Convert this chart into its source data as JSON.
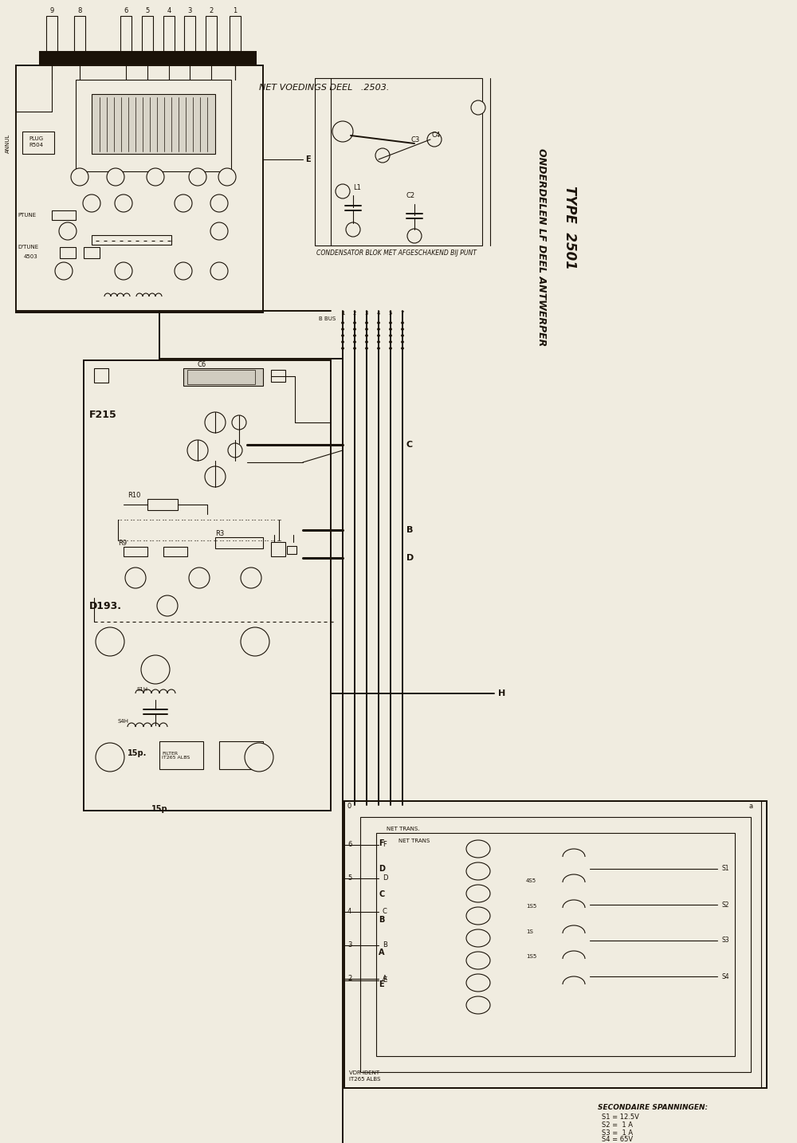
{
  "bg_color": "#f0ece0",
  "line_color": "#1a1208",
  "fig_width": 10.0,
  "fig_height": 14.34,
  "dpi": 100,
  "title_main": "ONDERDELEN LF DEEL ANTWERPER",
  "title_type": "TYPE  2501",
  "net_voedings_text": "NET VOEDINGS DEEL   .2503.",
  "condensator_text": "CONDENSATOR BLOK MET AFGESCHAKEND BIJ PUNT",
  "f215_text": "F215",
  "d193_text": "D193.",
  "c6_text": "C6",
  "r10_text": "R10",
  "r9_text": "R9",
  "r3_text": "R3",
  "15p_text": "15p.",
  "h_label": "H",
  "b_label": "B",
  "c_label": "C",
  "d_label": "D",
  "secondaire_text": "SECONDAIRE SPANNINGEN:",
  "s1_text": "S1 = 12.5V",
  "s2_text": "S2 =  1 A",
  "s3_text": "S3 =  1 A",
  "s4_text": "S4 = 65V",
  "bus_label": "B BUS",
  "pin_labels": [
    "1",
    "2",
    "3",
    "4",
    "5",
    "6",
    "8",
    "9"
  ],
  "annul_text": "ANNUL",
  "e_label": "E",
  "plug_text": "PLUG\nR504",
  "ptune_text": "PTUNE",
  "dtune_text": "D'TUNE\n4503"
}
